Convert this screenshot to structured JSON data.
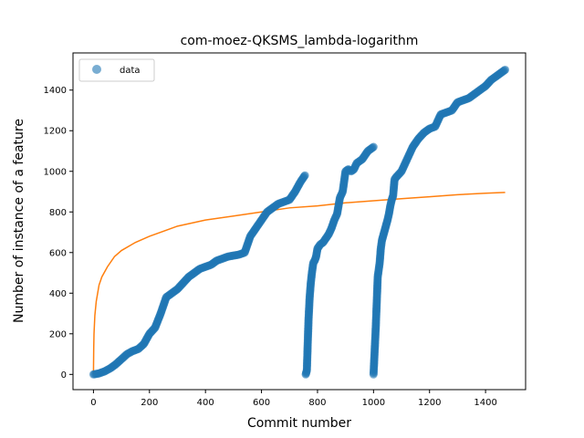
{
  "chart_data": {
    "type": "scatter",
    "title": "com-moez-QKSMS_lambda-logarithm",
    "xlabel": "Commit number",
    "ylabel": "Number of instance of a feature",
    "xlim": [
      -73,
      1543
    ],
    "ylim": [
      -75,
      1583
    ],
    "xticks": [
      0,
      200,
      400,
      600,
      800,
      1000,
      1200,
      1400
    ],
    "yticks": [
      0,
      200,
      400,
      600,
      800,
      1000,
      1200,
      1400
    ],
    "grid": false,
    "legend": {
      "placement": "top-left",
      "entries": [
        "data"
      ]
    },
    "colors": {
      "data": "#1f77b4",
      "fit": "#ff7f0e"
    },
    "series": [
      {
        "name": "data",
        "kind": "scatter",
        "segments": [
          {
            "x": [
              0,
              20,
              40,
              60,
              80,
              100,
              120,
              140,
              160,
              180,
              200,
              220,
              240,
              260,
              280,
              300,
              320,
              340,
              360,
              380,
              400,
              420,
              440,
              460,
              480,
              500,
              520,
              540,
              560,
              580,
              600,
              620,
              640,
              660,
              680,
              700,
              720,
              740,
              755
            ],
            "y": [
              0,
              5,
              15,
              30,
              50,
              75,
              100,
              115,
              125,
              150,
              200,
              230,
              300,
              380,
              400,
              420,
              450,
              480,
              500,
              520,
              530,
              540,
              560,
              570,
              580,
              585,
              590,
              600,
              680,
              720,
              760,
              800,
              820,
              840,
              850,
              860,
              900,
              950,
              980
            ]
          },
          {
            "x": [
              758,
              762,
              765,
              768,
              772,
              776,
              780,
              785,
              790,
              795,
              800,
              810,
              820,
              830,
              840,
              850,
              860,
              870,
              880,
              890,
              900,
              910,
              920,
              930,
              940,
              950,
              960,
              970,
              980,
              990,
              1000
            ],
            "y": [
              0,
              20,
              150,
              270,
              380,
              450,
              500,
              550,
              560,
              580,
              620,
              640,
              650,
              670,
              690,
              720,
              760,
              790,
              870,
              900,
              1000,
              1010,
              1000,
              1010,
              1040,
              1050,
              1060,
              1080,
              1100,
              1110,
              1120
            ]
          },
          {
            "x": [
              1000,
              1008,
              1015,
              1022,
              1026,
              1030,
              1034,
              1038,
              1042,
              1046,
              1050,
              1055,
              1060,
              1065,
              1070,
              1075,
              1080,
              1100,
              1120,
              1140,
              1160,
              1180,
              1200,
              1220,
              1240,
              1260,
              1280,
              1300,
              1320,
              1340,
              1360,
              1380,
              1400,
              1420,
              1440,
              1460,
              1470
            ],
            "y": [
              0,
              230,
              480,
              550,
              620,
              660,
              680,
              700,
              720,
              740,
              760,
              790,
              830,
              860,
              880,
              960,
              970,
              1000,
              1060,
              1120,
              1160,
              1190,
              1210,
              1220,
              1280,
              1290,
              1300,
              1340,
              1350,
              1360,
              1380,
              1400,
              1420,
              1450,
              1470,
              1490,
              1500
            ]
          }
        ]
      },
      {
        "name": "",
        "kind": "line",
        "x": [
          0,
          1,
          2,
          5,
          10,
          20,
          30,
          50,
          75,
          100,
          150,
          200,
          300,
          400,
          500,
          600,
          700,
          800,
          900,
          1000,
          1100,
          1200,
          1300,
          1400,
          1470
        ],
        "y": [
          0,
          130,
          200,
          290,
          360,
          440,
          480,
          530,
          580,
          610,
          650,
          680,
          730,
          760,
          780,
          800,
          820,
          830,
          845,
          855,
          865,
          875,
          885,
          892,
          896
        ]
      }
    ]
  }
}
